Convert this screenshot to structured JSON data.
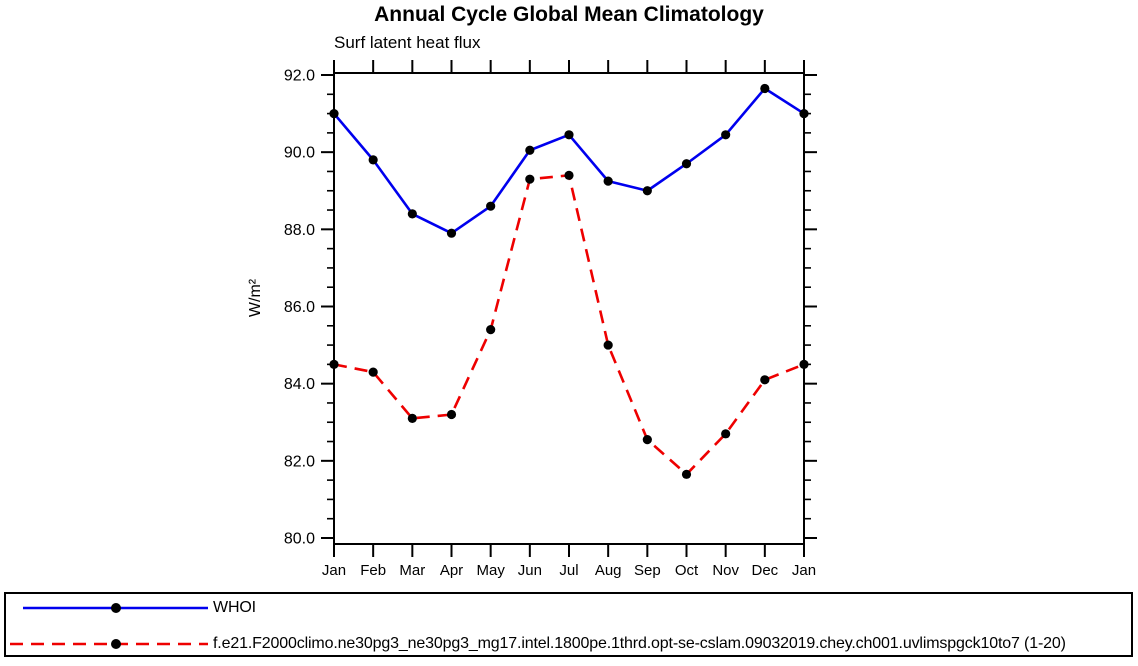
{
  "chart_data": {
    "type": "line",
    "title": "Annual Cycle Global Mean Climatology",
    "subtitle": "Surf latent heat flux",
    "ylabel": "W/m²",
    "xlabel": "",
    "x_categories": [
      "Jan",
      "Feb",
      "Mar",
      "Apr",
      "May",
      "Jun",
      "Jul",
      "Aug",
      "Sep",
      "Oct",
      "Nov",
      "Dec",
      "Jan"
    ],
    "ylim": [
      79.85,
      92.05
    ],
    "yticks_major": [
      80.0,
      82.0,
      84.0,
      86.0,
      88.0,
      90.0,
      92.0
    ],
    "ytick_labels": [
      "80.0",
      "82.0",
      "84.0",
      "86.0",
      "88.0",
      "90.0",
      "92.0"
    ],
    "yminor_step": 0.5,
    "grid": false,
    "tick_direction": "out",
    "axis_color": "#000000",
    "marker_color": "#000000",
    "legend_position": "bottom-box",
    "series": [
      {
        "name": "WHOI",
        "color": "#0000ee",
        "line_style": "solid",
        "marker": "circle",
        "values": [
          91.0,
          89.8,
          88.4,
          87.9,
          88.6,
          90.05,
          90.45,
          89.25,
          89.0,
          89.7,
          90.45,
          91.65,
          91.0
        ]
      },
      {
        "name": "f.e21.F2000climo.ne30pg3_ne30pg3_mg17.intel.1800pe.1thrd.opt-se-cslam.09032019.chey.ch001.uvlimspgck10to7 (1-20)",
        "color": "#ee0000",
        "line_style": "dashed",
        "marker": "circle",
        "values": [
          84.5,
          84.3,
          83.1,
          83.2,
          85.4,
          89.3,
          89.4,
          85.0,
          82.55,
          81.65,
          82.7,
          84.1,
          84.5
        ]
      }
    ]
  }
}
